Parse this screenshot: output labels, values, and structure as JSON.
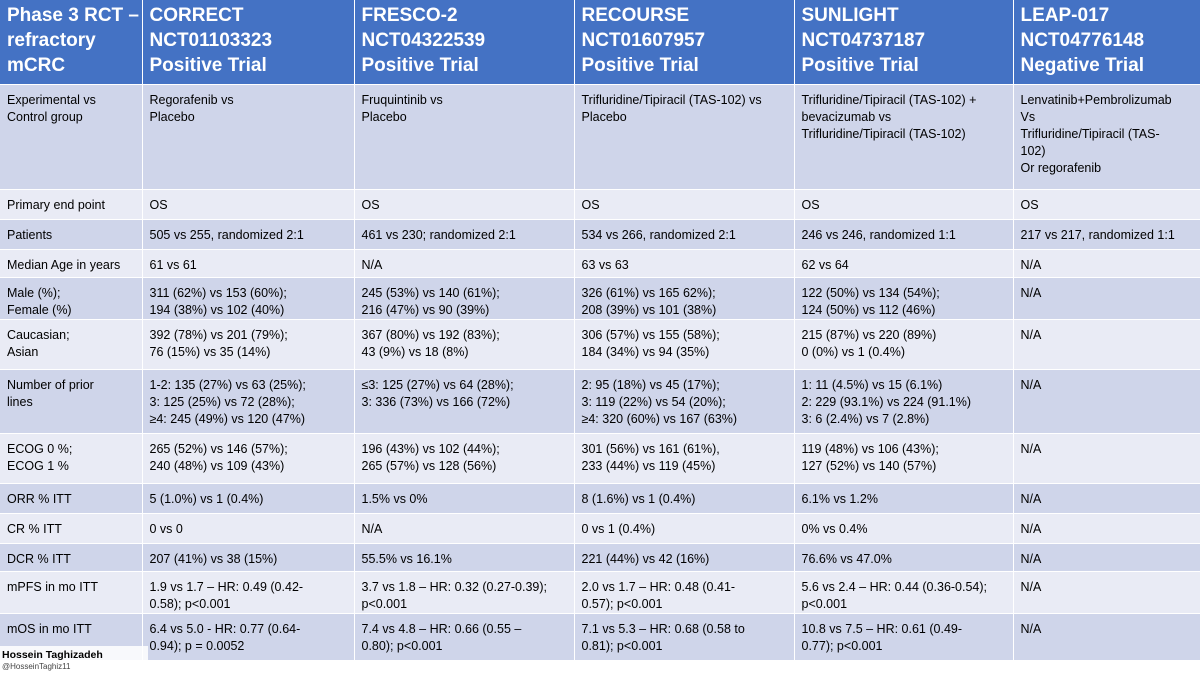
{
  "header": [
    {
      "lines": [
        "Phase 3 RCT –",
        "refractory",
        "mCRC"
      ]
    },
    {
      "lines": [
        "CORRECT",
        "NCT01103323",
        "Positive Trial"
      ]
    },
    {
      "lines": [
        "FRESCO-2",
        "NCT04322539",
        "Positive Trial"
      ]
    },
    {
      "lines": [
        "RECOURSE",
        "NCT01607957",
        "Positive Trial"
      ]
    },
    {
      "lines": [
        "SUNLIGHT",
        "NCT04737187",
        "Positive Trial"
      ]
    },
    {
      "lines": [
        "LEAP-017",
        "NCT04776148",
        "Negative Trial"
      ]
    }
  ],
  "rows": [
    {
      "key": "experimental",
      "cells": [
        [
          "Experimental vs",
          "Control group"
        ],
        [
          "Regorafenib vs",
          "Placebo"
        ],
        [
          "Fruquintinib vs",
          "Placebo"
        ],
        [
          "Trifluridine/Tipiracil (TAS-102) vs",
          "Placebo"
        ],
        [
          "Trifluridine/Tipiracil (TAS-102) +",
          "bevacizumab vs",
          "Trifluridine/Tipiracil (TAS-102)"
        ],
        [
          "Lenvatinib+Pembrolizumab",
          "Vs",
          "Trifluridine/Tipiracil (TAS-",
          "102)",
          "Or regorafenib"
        ]
      ]
    },
    {
      "key": "primary-endpoint",
      "cells": [
        [
          "Primary end point"
        ],
        [
          "OS"
        ],
        [
          "OS"
        ],
        [
          "OS"
        ],
        [
          "OS"
        ],
        [
          "OS"
        ]
      ]
    },
    {
      "key": "patients",
      "cells": [
        [
          "Patients"
        ],
        [
          "505 vs 255, randomized 2:1"
        ],
        [
          "461 vs 230; randomized 2:1"
        ],
        [
          "534 vs 266, randomized 2:1"
        ],
        [
          "246 vs 246, randomized 1:1"
        ],
        [
          "217 vs 217, randomized 1:1"
        ]
      ]
    },
    {
      "key": "median-age",
      "cells": [
        [
          "Median Age in years"
        ],
        [
          "61 vs 61"
        ],
        [
          "N/A"
        ],
        [
          "63 vs 63"
        ],
        [
          "62 vs 64"
        ],
        [
          "N/A"
        ]
      ]
    },
    {
      "key": "sex",
      "cells": [
        [
          "Male (%);",
          "Female (%)"
        ],
        [
          "311 (62%) vs 153 (60%);",
          "194 (38%) vs 102 (40%)"
        ],
        [
          "245 (53%) vs 140 (61%);",
          "216 (47%) vs 90 (39%)"
        ],
        [
          "326 (61%) vs 165 62%);",
          "208 (39%) vs 101 (38%)"
        ],
        [
          "122 (50%) vs 134 (54%);",
          "124 (50%) vs 112 (46%)"
        ],
        [
          "N/A"
        ]
      ]
    },
    {
      "key": "race",
      "cells": [
        [
          "Caucasian;",
          "Asian"
        ],
        [
          "392 (78%) vs 201 (79%);",
          "76 (15%) vs 35 (14%)"
        ],
        [
          "367 (80%) vs 192 (83%);",
          "43 (9%) vs 18 (8%)"
        ],
        [
          "306 (57%) vs 155 (58%);",
          "184 (34%) vs 94 (35%)"
        ],
        [
          "215 (87%) vs 220 (89%)",
          "0 (0%) vs 1 (0.4%)"
        ],
        [
          "N/A"
        ]
      ]
    },
    {
      "key": "prior-lines",
      "cells": [
        [
          "Number of prior",
          "lines"
        ],
        [
          "1-2: 135 (27%) vs 63 (25%);",
          "3: 125 (25%) vs 72 (28%);",
          "≥4: 245 (49%) vs 120 (47%)"
        ],
        [
          "≤3: 125 (27%) vs 64 (28%);",
          "3: 336 (73%) vs 166 (72%)"
        ],
        [
          "2: 95 (18%) vs 45 (17%);",
          "3: 119 (22%) vs 54 (20%);",
          "≥4: 320 (60%) vs 167 (63%)"
        ],
        [
          "1: 11 (4.5%) vs 15 (6.1%)",
          "2: 229 (93.1%) vs 224 (91.1%)",
          "3: 6 (2.4%) vs 7 (2.8%)"
        ],
        [
          "N/A"
        ]
      ]
    },
    {
      "key": "ecog",
      "cells": [
        [
          "ECOG 0 %;",
          "ECOG 1 %"
        ],
        [
          "265 (52%) vs 146 (57%);",
          "240 (48%) vs 109 (43%)"
        ],
        [
          "196 (43%) vs 102 (44%);",
          "265 (57%) vs 128 (56%)"
        ],
        [
          "301 (56%) vs 161 (61%),",
          "233 (44%) vs 119 (45%)"
        ],
        [
          "119 (48%) vs 106 (43%);",
          "127 (52%) vs 140 (57%)"
        ],
        [
          "N/A"
        ]
      ]
    },
    {
      "key": "orr",
      "cells": [
        [
          "ORR % ITT"
        ],
        [
          "5 (1.0%) vs 1 (0.4%)"
        ],
        [
          "1.5% vs 0%"
        ],
        [
          "8 (1.6%) vs 1 (0.4%)"
        ],
        [
          "6.1% vs 1.2%"
        ],
        [
          "N/A"
        ]
      ]
    },
    {
      "key": "cr",
      "cells": [
        [
          "CR % ITT"
        ],
        [
          "0 vs 0"
        ],
        [
          "N/A"
        ],
        [
          "0 vs 1 (0.4%)"
        ],
        [
          "0% vs 0.4%"
        ],
        [
          "N/A"
        ]
      ]
    },
    {
      "key": "dcr",
      "cells": [
        [
          "DCR % ITT"
        ],
        [
          "207 (41%) vs 38 (15%)"
        ],
        [
          "55.5% vs 16.1%"
        ],
        [
          "221 (44%) vs 42 (16%)"
        ],
        [
          "76.6% vs 47.0%"
        ],
        [
          "N/A"
        ]
      ]
    },
    {
      "key": "mpfs",
      "cells": [
        [
          "mPFS in mo ITT"
        ],
        [
          "1.9 vs 1.7 – HR: 0.49 (0.42-",
          "0.58); p<0.001"
        ],
        [
          "3.7 vs 1.8 – HR: 0.32 (0.27-0.39);",
          "p<0.001"
        ],
        [
          "2.0 vs 1.7 – HR:  0.48 (0.41-",
          "0.57); p<0.001"
        ],
        [
          "5.6 vs 2.4 – HR: 0.44 (0.36-0.54);",
          "p<0.001"
        ],
        [
          "N/A"
        ]
      ]
    },
    {
      "key": "mos",
      "cells": [
        [
          "mOS in mo ITT"
        ],
        [
          "6.4 vs 5.0 - HR: 0.77 (0.64-",
          "0.94); p = 0.0052"
        ],
        [
          "7.4 vs 4.8 – HR: 0.66 (0.55 –",
          "0.80); p<0.001"
        ],
        [
          "7.1 vs 5.3 – HR: 0.68 (0.58 to",
          "0.81); p<0.001"
        ],
        [
          "10.8 vs 7.5 – HR: 0.61 (0.49-",
          "0.77); p<0.001"
        ],
        [
          "N/A"
        ]
      ]
    }
  ],
  "watermark": {
    "name": "Hossein Taghizadeh",
    "handle": "@HosseinTaghiz11"
  },
  "colors": {
    "header_bg": "#4472c4",
    "row_odd": "#cfd5ea",
    "row_even": "#e9ebf5"
  }
}
